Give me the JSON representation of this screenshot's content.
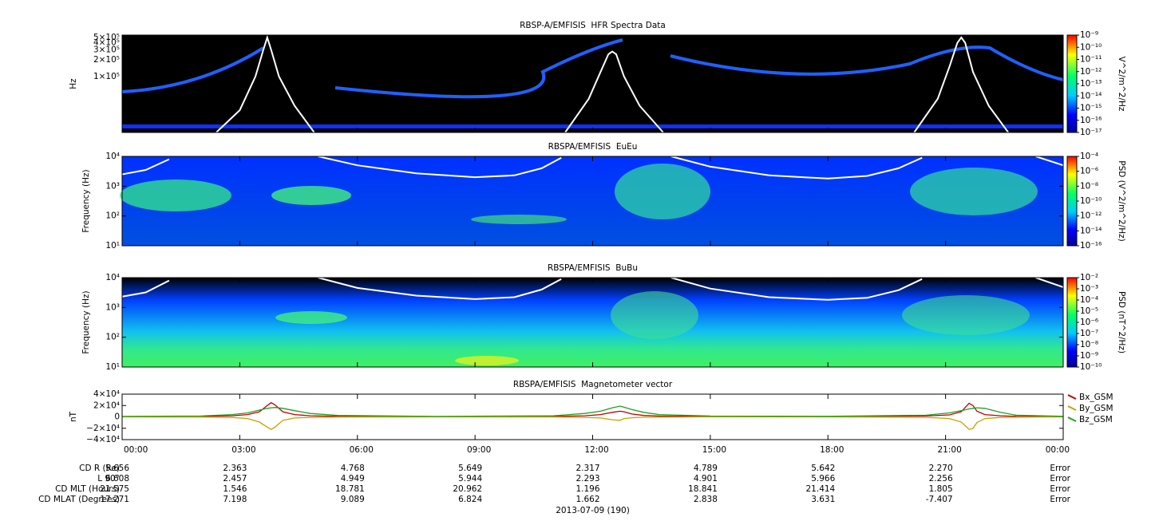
{
  "chart_data": [
    {
      "type": "spectrogram",
      "title": "RBSP-A/EMFISIS  HFR Spectra Data",
      "ylabel": "Hz",
      "log_y": true,
      "xlim": [
        0,
        24
      ],
      "xticks": [
        0,
        3,
        6,
        9,
        12,
        15,
        18,
        21,
        24
      ],
      "ylim": [
        10000,
        550000
      ],
      "yticks": [
        {
          "value": 100000,
          "label": "1×10⁵"
        },
        {
          "value": 200000,
          "label": "2×10⁵"
        },
        {
          "value": 300000,
          "label": "3×10⁵"
        },
        {
          "value": 400000,
          "label": "4×10⁵"
        },
        {
          "value": 500000,
          "label": "5×10⁵"
        }
      ],
      "zlabel": "V^2/m^2/Hz",
      "zlim": [
        1e-17,
        1e-09
      ],
      "zticks": [
        {
          "value": 1e-09,
          "label": "10⁻⁹"
        },
        {
          "value": 1e-10,
          "label": "10⁻¹⁰"
        },
        {
          "value": 1e-11,
          "label": "10⁻¹¹"
        },
        {
          "value": 1e-12,
          "label": "10⁻¹²"
        },
        {
          "value": 1e-13,
          "label": "10⁻¹³"
        },
        {
          "value": 1e-14,
          "label": "10⁻¹⁴"
        },
        {
          "value": 1e-15,
          "label": "10⁻¹⁵"
        },
        {
          "value": 1e-16,
          "label": "10⁻¹⁶"
        },
        {
          "value": 1e-17,
          "label": "10⁻¹⁷"
        }
      ],
      "series": [
        {
          "color": "#ffffff",
          "x": [
            2.4,
            3.0,
            3.4,
            3.6,
            3.7,
            3.8,
            4.0,
            4.4,
            4.9,
            8,
            11.3,
            11.9,
            12.2,
            12.4,
            12.5,
            12.6,
            12.8,
            13.2,
            13.8,
            17,
            20.2,
            20.8,
            21.1,
            21.3,
            21.4,
            21.5,
            21.7,
            22.1,
            22.6
          ],
          "values": [
            10000,
            25000,
            100000,
            300000,
            500000,
            300000,
            100000,
            30000,
            10000,
            null,
            10000,
            40000,
            120000,
            250000,
            280000,
            250000,
            100000,
            30000,
            10000,
            null,
            10000,
            40000,
            150000,
            400000,
            500000,
            400000,
            120000,
            30000,
            10000
          ]
        }
      ]
    },
    {
      "type": "spectrogram",
      "title": "RBSPA/EMFISIS  EuEu",
      "ylabel": "Frequency (Hz)",
      "log_y": true,
      "xlim": [
        0,
        24
      ],
      "xticks": [
        0,
        3,
        6,
        9,
        12,
        15,
        18,
        21,
        24
      ],
      "ylim": [
        10,
        10000
      ],
      "yticks": [
        {
          "value": 10,
          "label": "10¹"
        },
        {
          "value": 100,
          "label": "10²"
        },
        {
          "value": 1000,
          "label": "10³"
        },
        {
          "value": 10000,
          "label": "10⁴"
        }
      ],
      "zlabel": "PSD (V^2/m^2/Hz)",
      "zlim": [
        1e-16,
        0.0001
      ],
      "zticks": [
        {
          "value": 0.0001,
          "label": "10⁻⁴"
        },
        {
          "value": 1e-06,
          "label": "10⁻⁶"
        },
        {
          "value": 1e-08,
          "label": "10⁻⁸"
        },
        {
          "value": 1e-10,
          "label": "10⁻¹⁰"
        },
        {
          "value": 1e-12,
          "label": "10⁻¹²"
        },
        {
          "value": 1e-14,
          "label": "10⁻¹⁴"
        },
        {
          "value": 1e-16,
          "label": "10⁻¹⁶"
        }
      ],
      "series": [
        {
          "color": "#ffffff",
          "x": [
            0,
            0.6,
            1.2,
            3,
            5,
            6,
            7.5,
            9,
            10,
            10.7,
            11.2,
            12.7,
            14,
            15,
            16.5,
            18,
            19,
            19.8,
            20.4,
            22,
            23.3,
            24
          ],
          "values": [
            2500,
            3500,
            8000,
            null,
            10000,
            5000,
            2700,
            2000,
            2300,
            4000,
            9000,
            null,
            10000,
            4500,
            2300,
            1800,
            2200,
            4000,
            9000,
            null,
            10000,
            5000
          ]
        }
      ]
    },
    {
      "type": "spectrogram",
      "title": "RBSPA/EMFISIS  BuBu",
      "ylabel": "Frequency (Hz)",
      "log_y": true,
      "xlim": [
        0,
        24
      ],
      "xticks": [
        0,
        3,
        6,
        9,
        12,
        15,
        18,
        21,
        24
      ],
      "ylim": [
        10,
        10000
      ],
      "yticks": [
        {
          "value": 10,
          "label": "10¹"
        },
        {
          "value": 100,
          "label": "10²"
        },
        {
          "value": 1000,
          "label": "10³"
        },
        {
          "value": 10000,
          "label": "10⁴"
        }
      ],
      "zlabel": "PSD (nT^2/Hz)",
      "zlim": [
        1e-10,
        0.01
      ],
      "zticks": [
        {
          "value": 0.01,
          "label": "10⁻²"
        },
        {
          "value": 0.001,
          "label": "10⁻³"
        },
        {
          "value": 0.0001,
          "label": "10⁻⁴"
        },
        {
          "value": 1e-05,
          "label": "10⁻⁵"
        },
        {
          "value": 1e-06,
          "label": "10⁻⁶"
        },
        {
          "value": 1e-07,
          "label": "10⁻⁷"
        },
        {
          "value": 1e-08,
          "label": "10⁻⁸"
        },
        {
          "value": 1e-09,
          "label": "10⁻⁹"
        },
        {
          "value": 1e-10,
          "label": "10⁻¹⁰"
        }
      ],
      "series": [
        {
          "color": "#ffffff",
          "x": [
            0,
            0.6,
            1.2,
            3,
            5,
            6,
            7.5,
            9,
            10,
            10.7,
            11.2,
            12.7,
            14,
            15,
            16.5,
            18,
            19,
            19.8,
            20.4,
            22,
            23.3,
            24
          ],
          "values": [
            2300,
            3200,
            8000,
            null,
            10000,
            4500,
            2500,
            1900,
            2200,
            4000,
            9000,
            null,
            10000,
            4300,
            2200,
            1800,
            2100,
            3800,
            9000,
            null,
            10000,
            4800
          ]
        }
      ]
    },
    {
      "type": "line",
      "title": "RBSPA/EMFISIS  Magnetometer vector",
      "ylabel": "nT",
      "xlim": [
        0,
        24
      ],
      "xticks": [
        {
          "value": 0,
          "label": "00:00"
        },
        {
          "value": 3,
          "label": "03:00"
        },
        {
          "value": 6,
          "label": "06:00"
        },
        {
          "value": 9,
          "label": "09:00"
        },
        {
          "value": 12,
          "label": "12:00"
        },
        {
          "value": 15,
          "label": "15:00"
        },
        {
          "value": 18,
          "label": "18:00"
        },
        {
          "value": 21,
          "label": "21:00"
        },
        {
          "value": 24,
          "label": "00:00"
        }
      ],
      "ylim": [
        -40000,
        40000
      ],
      "yticks": [
        {
          "value": 40000,
          "label": "4×10⁴"
        },
        {
          "value": 20000,
          "label": "2×10⁴"
        },
        0,
        {
          "value": -20000,
          "label": "−2×10⁴"
        },
        {
          "value": -40000,
          "label": "−4×10⁴"
        }
      ],
      "legend": "right",
      "x": [
        0,
        2,
        2.8,
        3.2,
        3.5,
        3.7,
        3.8,
        3.9,
        4.1,
        4.4,
        4.8,
        5.5,
        8,
        11,
        11.8,
        12.2,
        12.5,
        12.7,
        12.8,
        13,
        13.3,
        13.7,
        15,
        18,
        20.5,
        21.1,
        21.4,
        21.6,
        21.7,
        21.8,
        22,
        22.4,
        22.8,
        24
      ],
      "series": [
        {
          "name": "Bx_GSM",
          "color": "#c00000",
          "values": [
            500,
            800,
            2000,
            4000,
            9000,
            20000,
            25000,
            21000,
            9000,
            4000,
            2000,
            1000,
            500,
            800,
            2000,
            4000,
            8000,
            10000,
            9000,
            5000,
            2500,
            1500,
            800,
            600,
            1500,
            3500,
            9000,
            24000,
            20000,
            10000,
            4000,
            2000,
            1000,
            500
          ]
        },
        {
          "name": "By_GSM",
          "color": "#c8a000",
          "values": [
            0,
            -300,
            -1000,
            -3000,
            -9000,
            -18000,
            -22000,
            -18000,
            -6000,
            -2000,
            -800,
            -300,
            0,
            -200,
            -800,
            -2000,
            -5000,
            -6000,
            -3000,
            -1500,
            -600,
            -300,
            0,
            0,
            -800,
            -3000,
            -9000,
            -22000,
            -20000,
            -10000,
            -3000,
            -1000,
            -400,
            0
          ]
        },
        {
          "name": "Bz_GSM",
          "color": "#20a020",
          "values": [
            800,
            1500,
            4000,
            7000,
            12000,
            15000,
            16000,
            16500,
            15000,
            11000,
            6000,
            2500,
            800,
            2000,
            6000,
            10000,
            16000,
            19000,
            17000,
            13000,
            8000,
            4000,
            1500,
            1000,
            3000,
            7000,
            11000,
            14000,
            15000,
            16000,
            15000,
            8000,
            3000,
            1000
          ]
        }
      ]
    }
  ],
  "ephemeris": {
    "rows": [
      {
        "label": "CD R (Re)",
        "values": [
          "5.656",
          "2.363",
          "4.768",
          "5.649",
          "2.317",
          "4.789",
          "5.642",
          "2.270",
          "Error"
        ]
      },
      {
        "label": "L 90°",
        "values": [
          "6.608",
          "2.457",
          "4.949",
          "5.944",
          "2.293",
          "4.901",
          "5.966",
          "2.256",
          "Error"
        ]
      },
      {
        "label": "CD MLT (Hours)",
        "values": [
          "21.575",
          "1.546",
          "18.781",
          "20.962",
          "1.196",
          "18.841",
          "21.414",
          "1.805",
          "Error"
        ]
      },
      {
        "label": "CD MLAT (Degrees)",
        "values": [
          "17.271",
          "7.198",
          "9.089",
          "6.824",
          "1.662",
          "2.838",
          "3.631",
          "-7.407",
          "Error"
        ]
      }
    ],
    "date": "2013-07-09 (190)"
  }
}
